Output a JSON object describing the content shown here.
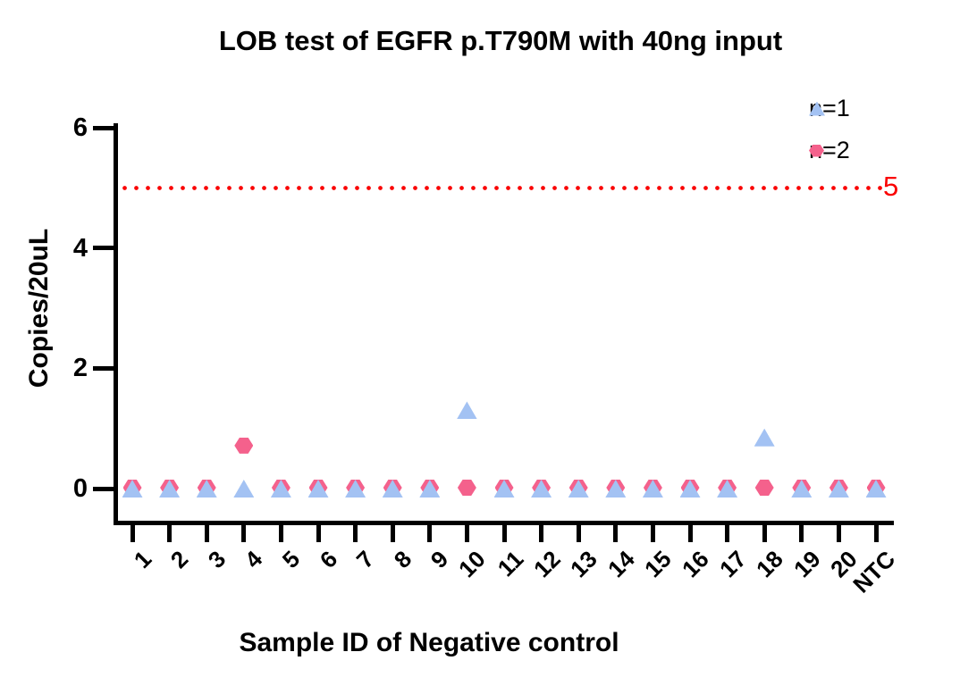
{
  "title": "LOB test of EGFR p.T790M with 40ng input",
  "chart_data": {
    "type": "scatter",
    "title": "LOB test of EGFR p.T790M with 40ng input",
    "xlabel": "Sample ID of Negative control",
    "ylabel": "Copies/20uL",
    "categories": [
      "1",
      "2",
      "3",
      "4",
      "5",
      "6",
      "7",
      "8",
      "9",
      "10",
      "11",
      "12",
      "13",
      "14",
      "15",
      "16",
      "17",
      "18",
      "19",
      "20",
      "NTC"
    ],
    "series": [
      {
        "name": "n=1",
        "marker": "triangle",
        "color": "#A3C2F3",
        "values": [
          0,
          0,
          0,
          0,
          0,
          0,
          0,
          0,
          0,
          1.3,
          0,
          0,
          0,
          0,
          0,
          0,
          0,
          0.85,
          0,
          0,
          0
        ]
      },
      {
        "name": "n=2",
        "marker": "hexagon",
        "color": "#F4618C",
        "values": [
          0,
          0,
          0,
          0.7,
          0,
          0,
          0,
          0,
          0,
          0,
          0,
          0,
          0,
          0,
          0,
          0,
          0,
          0,
          0,
          0,
          0
        ]
      }
    ],
    "yticks": [
      0,
      2,
      4,
      6
    ],
    "ylim": [
      0,
      6
    ],
    "grid": false,
    "legend_position": "top-right",
    "threshold": {
      "value": 5,
      "label": "5",
      "color": "#FA0000",
      "style": "dotted"
    },
    "axis_color": "#000000"
  }
}
